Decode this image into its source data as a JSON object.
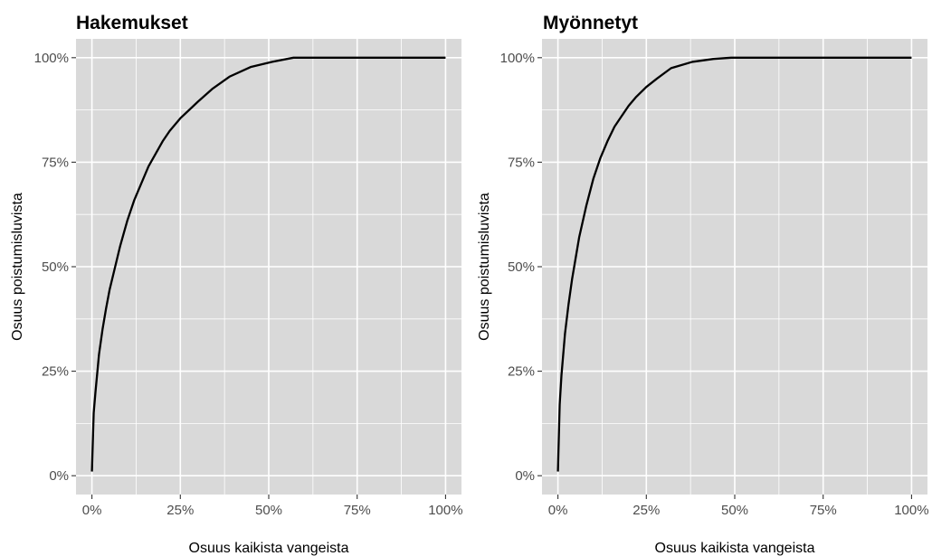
{
  "chart_data": [
    {
      "type": "line",
      "title": "Hakemukset",
      "xlabel": "Osuus kaikista vangeista",
      "ylabel": "Osuus poistumisluvista",
      "xlim": [
        0,
        1
      ],
      "ylim": [
        0,
        1
      ],
      "x_ticks": [
        0,
        0.25,
        0.5,
        0.75,
        1
      ],
      "x_tick_labels": [
        "0%",
        "25%",
        "50%",
        "75%",
        "100%"
      ],
      "y_ticks": [
        0,
        0.25,
        0.5,
        0.75,
        1
      ],
      "y_tick_labels": [
        "0%",
        "25%",
        "50%",
        "75%",
        "100%"
      ],
      "grid": true,
      "series": [
        {
          "color": "#000000",
          "x": [
            0,
            0.005,
            0.01,
            0.02,
            0.03,
            0.04,
            0.05,
            0.06,
            0.08,
            0.1,
            0.12,
            0.14,
            0.16,
            0.18,
            0.2,
            0.22,
            0.25,
            0.3,
            0.34,
            0.39,
            0.45,
            0.51,
            0.57,
            0.6,
            0.7,
            0.8,
            0.9,
            1.0
          ],
          "y": [
            0.01,
            0.15,
            0.2,
            0.29,
            0.35,
            0.4,
            0.445,
            0.48,
            0.55,
            0.61,
            0.66,
            0.7,
            0.74,
            0.77,
            0.8,
            0.825,
            0.855,
            0.895,
            0.925,
            0.955,
            0.978,
            0.99,
            1.0,
            1.0,
            1.0,
            1.0,
            1.0,
            1.0
          ]
        }
      ]
    },
    {
      "type": "line",
      "title": "Myönnetyt",
      "xlabel": "Osuus kaikista vangeista",
      "ylabel": "Osuus poistumisluvista",
      "xlim": [
        0,
        1
      ],
      "ylim": [
        0,
        1
      ],
      "x_ticks": [
        0,
        0.25,
        0.5,
        0.75,
        1
      ],
      "x_tick_labels": [
        "0%",
        "25%",
        "50%",
        "75%",
        "100%"
      ],
      "y_ticks": [
        0,
        0.25,
        0.5,
        0.75,
        1
      ],
      "y_tick_labels": [
        "0%",
        "25%",
        "50%",
        "75%",
        "100%"
      ],
      "grid": true,
      "series": [
        {
          "color": "#000000",
          "x": [
            0,
            0.005,
            0.01,
            0.02,
            0.03,
            0.04,
            0.05,
            0.06,
            0.08,
            0.1,
            0.12,
            0.14,
            0.16,
            0.18,
            0.2,
            0.22,
            0.25,
            0.28,
            0.32,
            0.38,
            0.44,
            0.49,
            0.55,
            0.7,
            0.85,
            1.0
          ],
          "y": [
            0.01,
            0.17,
            0.24,
            0.34,
            0.41,
            0.47,
            0.52,
            0.57,
            0.645,
            0.71,
            0.76,
            0.8,
            0.835,
            0.86,
            0.885,
            0.905,
            0.93,
            0.95,
            0.975,
            0.99,
            0.997,
            1.0,
            1.0,
            1.0,
            1.0,
            1.0
          ]
        }
      ]
    }
  ]
}
